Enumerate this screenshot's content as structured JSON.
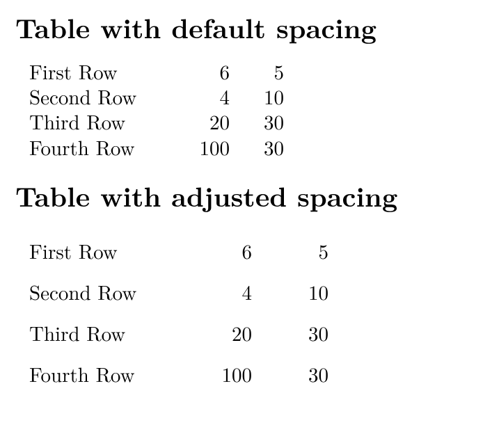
{
  "heading_default": "Table with default spacing",
  "heading_adjusted": "Table with adjusted spacing",
  "table_default": {
    "type": "table",
    "background_color": "#ffffff",
    "text_color": "#000000",
    "fontsize_pt": 22,
    "row_spacing": "tight",
    "columns": [
      {
        "align": "left",
        "kind": "label"
      },
      {
        "align": "right",
        "kind": "number"
      },
      {
        "align": "right",
        "kind": "number"
      }
    ],
    "rows": [
      [
        "First Row",
        "6",
        "5"
      ],
      [
        "Second Row",
        "4",
        "10"
      ],
      [
        "Third Row",
        "20",
        "30"
      ],
      [
        "Fourth Row",
        "100",
        "30"
      ]
    ]
  },
  "table_adjusted": {
    "type": "table",
    "background_color": "#ffffff",
    "text_color": "#000000",
    "fontsize_pt": 22,
    "row_spacing": "loose",
    "columns": [
      {
        "align": "left",
        "kind": "label"
      },
      {
        "align": "right",
        "kind": "number"
      },
      {
        "align": "right",
        "kind": "number"
      }
    ],
    "rows": [
      [
        "First Row",
        "6",
        "5"
      ],
      [
        "Second Row",
        "4",
        "10"
      ],
      [
        "Third Row",
        "20",
        "30"
      ],
      [
        "Fourth Row",
        "100",
        "30"
      ]
    ]
  },
  "style": {
    "heading_fontsize_pt": 29,
    "heading_fontweight": "bold",
    "body_fontfamily": "serif (Computer Modern / LaTeX)",
    "page_background": "#ffffff",
    "page_text": "#000000"
  }
}
